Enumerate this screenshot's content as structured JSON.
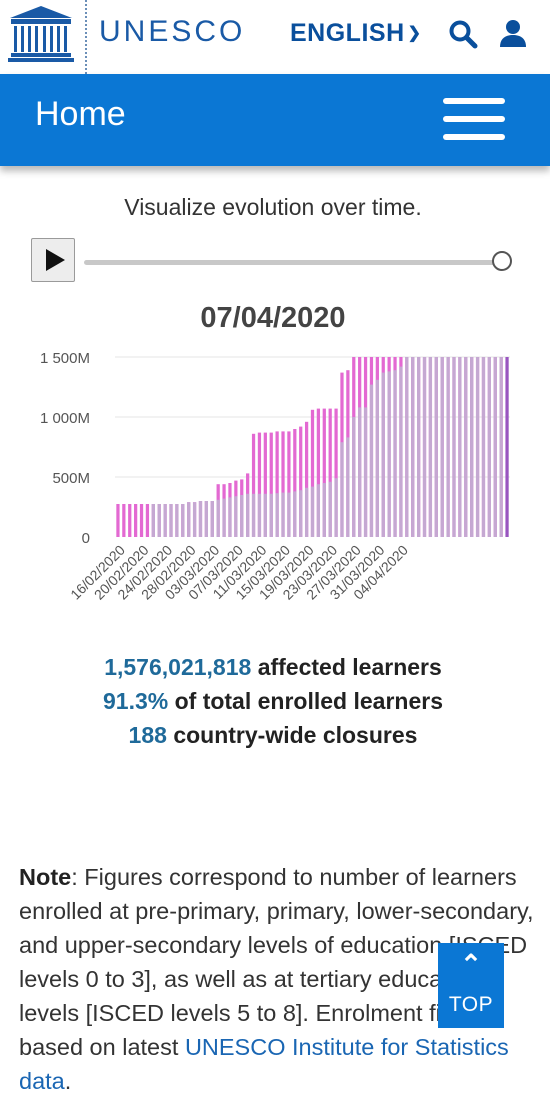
{
  "header": {
    "brand": "UNESCO",
    "language": "ENGLISH",
    "title": "Home",
    "icons": [
      "unesco-temple-logo",
      "chevron-down-icon",
      "search-icon",
      "user-icon",
      "hamburger-menu-icon"
    ],
    "brand_color": "#1a5aa6",
    "bar_color": "#0b77d4"
  },
  "intro": "Visualize evolution over time.",
  "slider": {
    "position": 1.0,
    "play_icon": "play-icon"
  },
  "chart_data": {
    "type": "bar",
    "title": "07/04/2020",
    "xlabel": "",
    "ylabel": "",
    "ylim": [
      0,
      1500
    ],
    "y_unit": "M",
    "y_ticks": [
      0,
      500,
      1000,
      1500
    ],
    "y_tick_labels": [
      "0",
      "500M",
      "1 000M",
      "1 500M"
    ],
    "x_tick_labels": [
      "16/02/2020",
      "20/02/2020",
      "24/02/2020",
      "28/02/2020",
      "03/03/2020",
      "07/03/2020",
      "11/03/2020",
      "15/03/2020",
      "19/03/2020",
      "23/03/2020",
      "27/03/2020",
      "31/03/2020",
      "04/04/2020"
    ],
    "grid": true,
    "colors": {
      "highlight": "#e369d2",
      "history": "#c5a8d2",
      "current": "#9955c0"
    },
    "start_date": "2020-02-16",
    "values": [
      275,
      275,
      275,
      275,
      275,
      275,
      275,
      275,
      275,
      275,
      275,
      275,
      290,
      290,
      300,
      300,
      300,
      440,
      440,
      450,
      470,
      480,
      530,
      860,
      870,
      870,
      870,
      880,
      880,
      880,
      900,
      920,
      960,
      1060,
      1070,
      1070,
      1070,
      1070,
      1370,
      1390,
      1500,
      1500,
      1500,
      1500,
      1500,
      1500,
      1500,
      1500,
      1500,
      1500,
      1500,
      1500,
      1500,
      1500,
      1500,
      1500,
      1500,
      1500,
      1500,
      1500,
      1500,
      1500,
      1500,
      1500,
      1500,
      1500,
      1500
    ],
    "history_values": [
      0,
      0,
      0,
      0,
      0,
      0,
      275,
      275,
      275,
      275,
      275,
      275,
      290,
      290,
      300,
      300,
      300,
      310,
      320,
      330,
      340,
      350,
      360,
      360,
      360,
      360,
      360,
      365,
      370,
      370,
      380,
      390,
      410,
      420,
      440,
      450,
      460,
      490,
      790,
      830,
      1000,
      1080,
      1080,
      1270,
      1310,
      1370,
      1380,
      1390,
      1420,
      1500,
      1500,
      1500,
      1500,
      1500,
      1500,
      1500,
      1500,
      1500,
      1500,
      1500,
      1500,
      1500,
      1500,
      1500,
      1500,
      1500,
      1500
    ]
  },
  "stats": {
    "learners_value": "1,576,021,818",
    "learners_label": "affected learners",
    "percent_value": "91.3%",
    "percent_label": "of total enrolled learners",
    "closures_value": "188",
    "closures_label": "country-wide closures"
  },
  "note": {
    "heading": "Note",
    "text": ": Figures correspond to number of learners enrolled at pre-primary, primary, lower-secondary, and upper-secondary levels of education [ISCED levels 0 to 3], as well as at tertiary education levels [ISCED levels 5 to 8]. Enrolment figures based on latest ",
    "link": "UNESCO Institute for Statistics data",
    "end": "."
  },
  "back_to_top": {
    "label": "TOP"
  }
}
